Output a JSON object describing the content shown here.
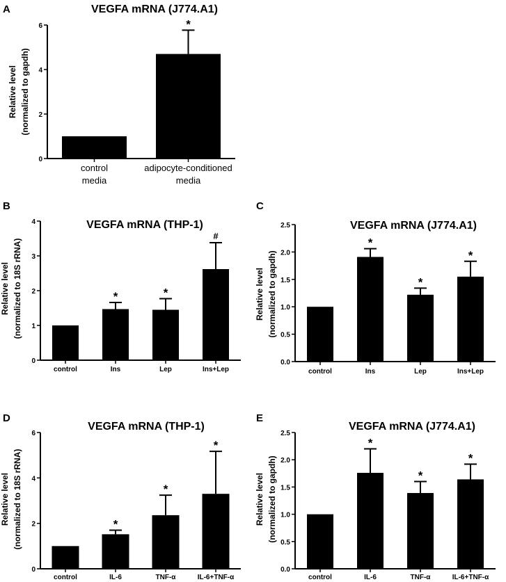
{
  "chart_data": [
    {
      "panel": "A",
      "type": "bar",
      "title": "VEGFA mRNA (J774.A1)",
      "ylabel": [
        "Relative level",
        "(normalized to gapdh)"
      ],
      "xlabel": "",
      "categories": [
        [
          "control",
          "media"
        ],
        [
          "adipocyte-conditioned",
          "media"
        ]
      ],
      "values": [
        1.0,
        4.7
      ],
      "errors": [
        0,
        1.07
      ],
      "significance": [
        "",
        "*"
      ],
      "ylim": [
        0,
        6
      ],
      "yticks": [
        "0",
        "2",
        "4",
        "6"
      ]
    },
    {
      "panel": "B",
      "type": "bar",
      "title": "VEGFA mRNA (THP-1)",
      "ylabel": [
        "Relative level",
        "(normalized to 18S rRNA)"
      ],
      "xlabel": "",
      "categories": [
        [
          "control"
        ],
        [
          "Ins"
        ],
        [
          "Lep"
        ],
        [
          "Ins+Lep"
        ]
      ],
      "values": [
        1.0,
        1.47,
        1.45,
        2.62
      ],
      "errors": [
        0,
        0.19,
        0.32,
        0.76
      ],
      "significance": [
        "",
        "*",
        "*",
        "#"
      ],
      "ylim": [
        0,
        4
      ],
      "yticks": [
        "0",
        "1",
        "2",
        "3",
        "4"
      ]
    },
    {
      "panel": "C",
      "type": "bar",
      "title": "VEGFA mRNA (J774.A1)",
      "ylabel": [
        "Relative level",
        "(normalized to gapdh)"
      ],
      "xlabel": "",
      "categories": [
        [
          "control"
        ],
        [
          "Ins"
        ],
        [
          "Lep"
        ],
        [
          "Ins+Lep"
        ]
      ],
      "values": [
        1.0,
        1.91,
        1.22,
        1.55
      ],
      "errors": [
        0,
        0.15,
        0.12,
        0.28
      ],
      "significance": [
        "",
        "*",
        "*",
        "*"
      ],
      "ylim": [
        0,
        2.5
      ],
      "yticks": [
        "0.0",
        "0.5",
        "1.0",
        "1.5",
        "2.0",
        "2.5"
      ]
    },
    {
      "panel": "D",
      "type": "bar",
      "title": "VEGFA mRNA (THP-1)",
      "ylabel": [
        "Relative level",
        "(normalized to 18S rRNA)"
      ],
      "xlabel": "",
      "categories": [
        [
          "control"
        ],
        [
          "IL-6"
        ],
        [
          "TNF-α"
        ],
        [
          "IL-6+TNF-α"
        ]
      ],
      "values": [
        1.0,
        1.52,
        2.36,
        3.3
      ],
      "errors": [
        0,
        0.18,
        0.88,
        1.87
      ],
      "significance": [
        "",
        "*",
        "*",
        "*"
      ],
      "ylim": [
        0,
        6
      ],
      "yticks": [
        "0",
        "2",
        "4",
        "6"
      ]
    },
    {
      "panel": "E",
      "type": "bar",
      "title": "VEGFA mRNA (J774.A1)",
      "ylabel": [
        "Relative level",
        "(normalized to gapdh)"
      ],
      "xlabel": "",
      "categories": [
        [
          "control"
        ],
        [
          "IL-6"
        ],
        [
          "TNF-α"
        ],
        [
          "IL-6+TNF-α"
        ]
      ],
      "values": [
        1.0,
        1.76,
        1.39,
        1.64
      ],
      "errors": [
        0,
        0.44,
        0.21,
        0.28
      ],
      "significance": [
        "",
        "*",
        "*",
        "*"
      ],
      "ylim": [
        0,
        2.5
      ],
      "yticks": [
        "0.0",
        "0.5",
        "1.0",
        "1.5",
        "2.0",
        "2.5"
      ]
    }
  ]
}
